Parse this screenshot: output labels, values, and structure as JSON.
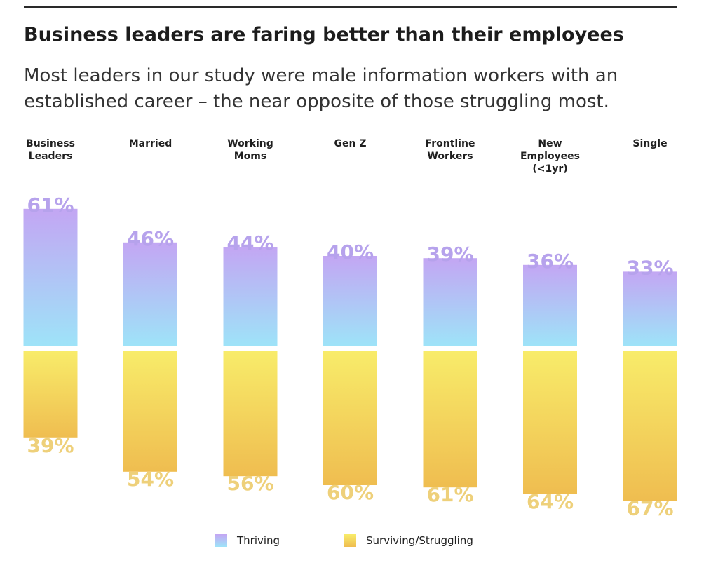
{
  "header": {
    "title": "Business leaders are faring better than their employees",
    "subtitle": "Most leaders in our study were male information workers with an established career – the near opposite of those struggling most."
  },
  "colors": {
    "thriving_top": "#c3a6f3",
    "thriving_bottom": "#9ee3f8",
    "struggling_top": "#f8ec6a",
    "struggling_bottom": "#efbd50",
    "thriving_label": "#b6a2ec",
    "struggling_label": "#eed07a"
  },
  "chart_data": {
    "type": "bar",
    "categories": [
      [
        "Business",
        "Leaders"
      ],
      [
        "Married"
      ],
      [
        "Working",
        "Moms"
      ],
      [
        "Gen Z"
      ],
      [
        "Frontline",
        "Workers"
      ],
      [
        "New",
        "Employees",
        "(<1yr)"
      ],
      [
        "Single"
      ]
    ],
    "series": [
      {
        "name": "Thriving",
        "values": [
          61,
          46,
          44,
          40,
          39,
          36,
          33
        ],
        "labels": [
          "61%",
          "46%",
          "44%",
          "40%",
          "39%",
          "36%",
          "33%"
        ]
      },
      {
        "name": "Surviving/Struggling",
        "values": [
          39,
          54,
          56,
          60,
          61,
          64,
          67
        ],
        "labels": [
          "39%",
          "54%",
          "56%",
          "60%",
          "61%",
          "64%",
          "67%"
        ]
      }
    ],
    "layout": "diverging-stacked",
    "legend_position": "bottom"
  },
  "legend": {
    "thriving_label": "Thriving",
    "struggling_label": "Surviving/Struggling"
  }
}
